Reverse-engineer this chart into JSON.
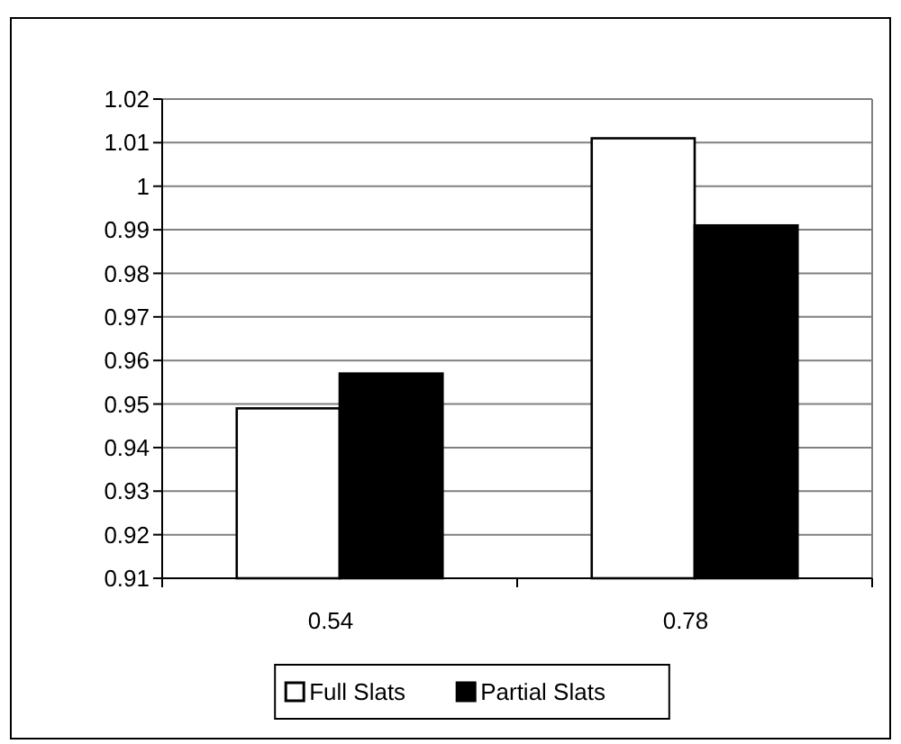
{
  "chart_data": {
    "type": "bar",
    "categories": [
      "0.54",
      "0.78"
    ],
    "series": [
      {
        "name": "Full Slats",
        "color": "#ffffff",
        "values": [
          0.949,
          1.011
        ]
      },
      {
        "name": "Partial Slats",
        "color": "#000000",
        "values": [
          0.957,
          0.991
        ]
      }
    ],
    "ylim": [
      0.91,
      1.02
    ],
    "yticks": [
      0.91,
      0.92,
      0.93,
      0.94,
      0.95,
      0.96,
      0.97,
      0.98,
      0.99,
      1,
      1.01,
      1.02
    ],
    "grid": "y",
    "legend": "bottom"
  }
}
